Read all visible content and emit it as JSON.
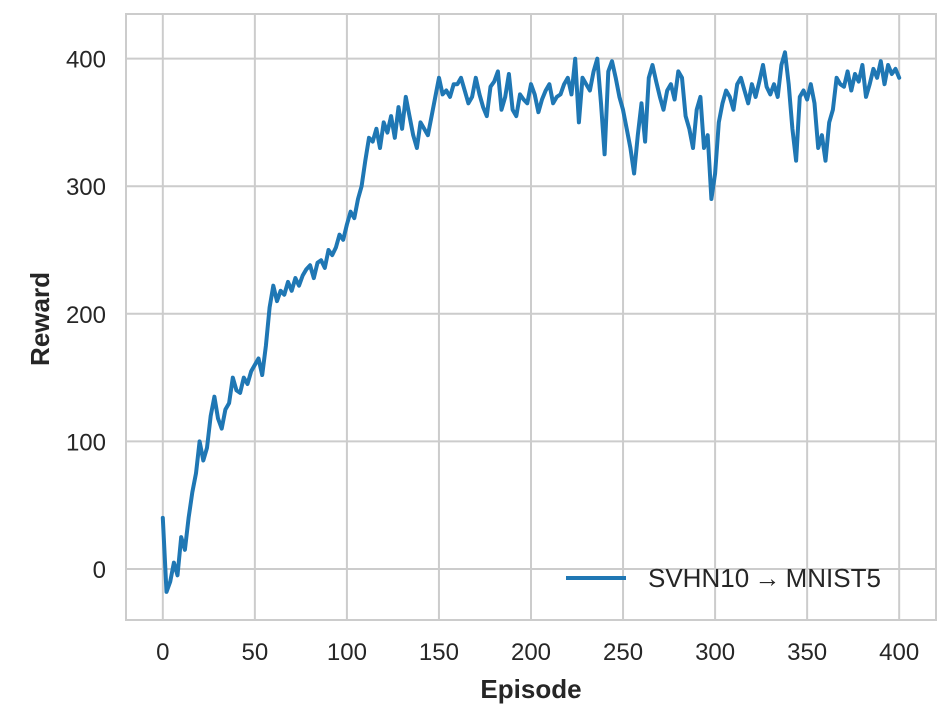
{
  "chart_data": {
    "type": "line",
    "xlabel": "Episode",
    "ylabel": "Reward",
    "xlim": [
      -20,
      420
    ],
    "ylim": [
      -40,
      435
    ],
    "xticks": [
      0,
      50,
      100,
      150,
      200,
      250,
      300,
      350,
      400
    ],
    "yticks": [
      0,
      100,
      200,
      300,
      400
    ],
    "grid": true,
    "legend_position": "lower-right",
    "series": [
      {
        "name": "SVHN10 → MNIST5",
        "color": "#1f77b4",
        "x": [
          0,
          2,
          4,
          6,
          8,
          10,
          12,
          14,
          16,
          18,
          20,
          22,
          24,
          26,
          28,
          30,
          32,
          34,
          36,
          38,
          40,
          42,
          44,
          46,
          48,
          50,
          52,
          54,
          56,
          58,
          60,
          62,
          64,
          66,
          68,
          70,
          72,
          74,
          76,
          78,
          80,
          82,
          84,
          86,
          88,
          90,
          92,
          94,
          96,
          98,
          100,
          102,
          104,
          106,
          108,
          110,
          112,
          114,
          116,
          118,
          120,
          122,
          124,
          126,
          128,
          130,
          132,
          134,
          136,
          138,
          140,
          142,
          144,
          146,
          148,
          150,
          152,
          154,
          156,
          158,
          160,
          162,
          164,
          166,
          168,
          170,
          172,
          174,
          176,
          178,
          180,
          182,
          184,
          186,
          188,
          190,
          192,
          194,
          196,
          198,
          200,
          202,
          204,
          206,
          208,
          210,
          212,
          214,
          216,
          218,
          220,
          222,
          224,
          226,
          228,
          230,
          232,
          234,
          236,
          238,
          240,
          242,
          244,
          246,
          248,
          250,
          252,
          254,
          256,
          258,
          260,
          262,
          264,
          266,
          268,
          270,
          272,
          274,
          276,
          278,
          280,
          282,
          284,
          286,
          288,
          290,
          292,
          294,
          296,
          298,
          300,
          302,
          304,
          306,
          308,
          310,
          312,
          314,
          316,
          318,
          320,
          322,
          324,
          326,
          328,
          330,
          332,
          334,
          336,
          338,
          340,
          342,
          344,
          346,
          348,
          350,
          352,
          354,
          356,
          358,
          360,
          362,
          364,
          366,
          368,
          370,
          372,
          374,
          376,
          378,
          380,
          382,
          384,
          386,
          388,
          390,
          392,
          394,
          396,
          398,
          400
        ],
        "y": [
          40,
          -18,
          -10,
          5,
          -5,
          25,
          15,
          40,
          60,
          75,
          100,
          85,
          95,
          120,
          135,
          118,
          110,
          125,
          130,
          150,
          140,
          138,
          150,
          145,
          155,
          160,
          165,
          152,
          175,
          205,
          222,
          210,
          218,
          215,
          225,
          218,
          228,
          222,
          230,
          235,
          238,
          228,
          240,
          242,
          236,
          250,
          246,
          252,
          262,
          258,
          270,
          280,
          275,
          290,
          300,
          320,
          338,
          335,
          345,
          330,
          350,
          342,
          355,
          338,
          362,
          345,
          370,
          355,
          340,
          330,
          350,
          345,
          340,
          355,
          370,
          385,
          372,
          375,
          370,
          380,
          380,
          385,
          375,
          365,
          370,
          385,
          372,
          362,
          355,
          378,
          382,
          390,
          360,
          370,
          388,
          360,
          355,
          372,
          368,
          365,
          380,
          372,
          358,
          368,
          375,
          380,
          365,
          370,
          372,
          380,
          385,
          372,
          400,
          350,
          385,
          380,
          375,
          390,
          400,
          365,
          325,
          390,
          398,
          385,
          370,
          360,
          345,
          330,
          310,
          340,
          365,
          335,
          385,
          395,
          382,
          370,
          360,
          375,
          380,
          368,
          390,
          385,
          355,
          345,
          330,
          360,
          370,
          330,
          340,
          290,
          310,
          350,
          365,
          375,
          370,
          360,
          380,
          385,
          375,
          365,
          380,
          370,
          382,
          395,
          378,
          372,
          380,
          370,
          395,
          405,
          380,
          345,
          320,
          370,
          375,
          368,
          380,
          365,
          330,
          340,
          320,
          350,
          360,
          385,
          380,
          378,
          390,
          375,
          388,
          382,
          395,
          370,
          380,
          392,
          385,
          398,
          380,
          395,
          388,
          392,
          385
        ]
      }
    ]
  }
}
